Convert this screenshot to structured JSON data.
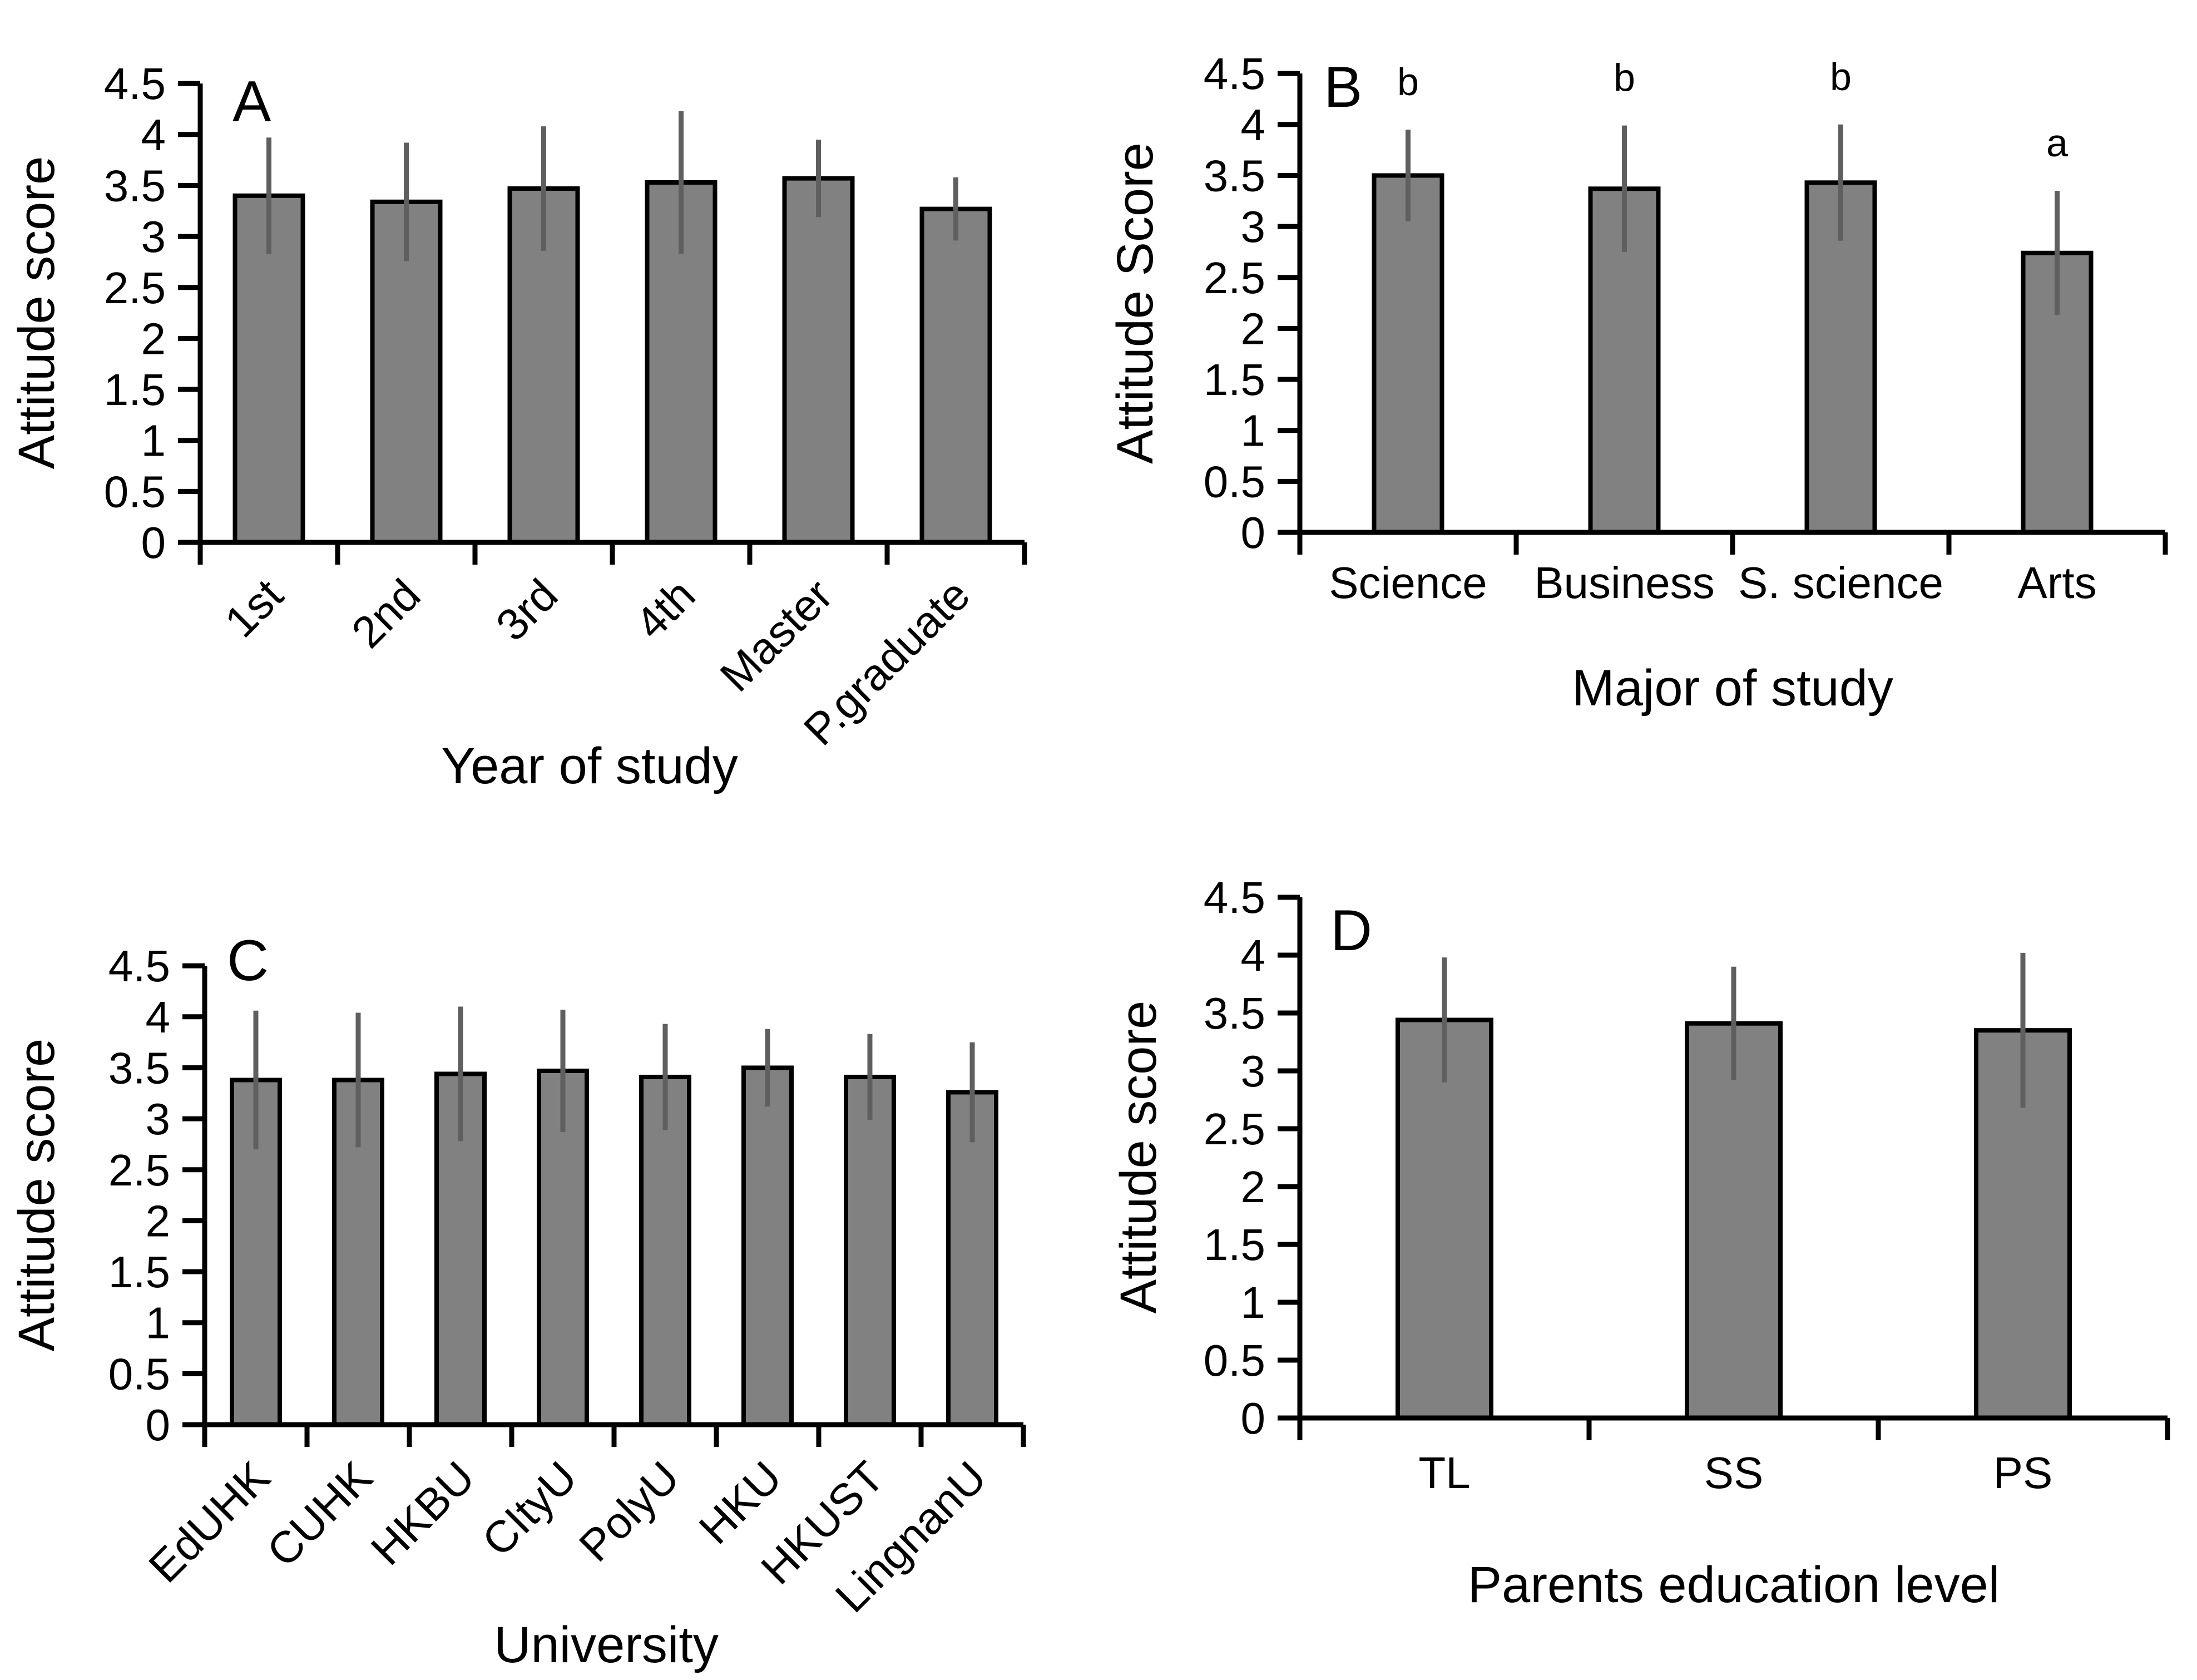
{
  "figure": {
    "background": "#ffffff",
    "text_color": "#000000",
    "bar_fill": "#818181",
    "bar_stroke": "#000000",
    "error_bar_color": "#5f5f5f",
    "axis_color": "#000000"
  },
  "chart_data": [
    {
      "panel_letter": "A",
      "type": "bar",
      "title": "",
      "xlabel": "Year of study",
      "ylabel": "Attitude score",
      "categories": [
        "1st",
        "2nd",
        "3rd",
        "4th",
        "Master",
        "P.graduate"
      ],
      "values": [
        3.4,
        3.34,
        3.47,
        3.53,
        3.57,
        3.27
      ],
      "error_sd": [
        0.57,
        0.58,
        0.61,
        0.7,
        0.38,
        0.31
      ],
      "sig_letters": [],
      "ylim": [
        0,
        4.5
      ],
      "ytick_step": 0.5,
      "ytick_labels": [
        "0",
        "0.5",
        "1",
        "1.5",
        "2",
        "2.5",
        "3",
        "3.5",
        "4",
        "4.5"
      ],
      "grid": false,
      "legend": "none",
      "category_label_rotation": -45
    },
    {
      "panel_letter": "B",
      "type": "bar",
      "title": "",
      "xlabel": "Major of study",
      "ylabel": "Attitude Score",
      "categories": [
        "Science",
        "Business",
        "S. science",
        "Arts"
      ],
      "values": [
        3.5,
        3.37,
        3.43,
        2.74
      ],
      "error_sd": [
        0.45,
        0.62,
        0.57,
        0.61
      ],
      "sig_letters": [
        "b",
        "b",
        "b",
        "a"
      ],
      "ylim": [
        0,
        4.5
      ],
      "ytick_step": 0.5,
      "ytick_labels": [
        "0",
        "0.5",
        "1",
        "1.5",
        "2",
        "2.5",
        "3",
        "3.5",
        "4",
        "4.5"
      ],
      "grid": false,
      "legend": "none",
      "category_label_rotation": 0
    },
    {
      "panel_letter": "C",
      "type": "bar",
      "title": "",
      "xlabel": "University",
      "ylabel": "Attitude score",
      "categories": [
        "EdUHK",
        "CUHK",
        "HKBU",
        "CItyU",
        "PolyU",
        "HKU",
        "HKUST",
        "LingnanU"
      ],
      "values": [
        3.38,
        3.38,
        3.44,
        3.47,
        3.41,
        3.5,
        3.41,
        3.26
      ],
      "error_sd": [
        0.68,
        0.66,
        0.66,
        0.6,
        0.52,
        0.38,
        0.42,
        0.49
      ],
      "sig_letters": [],
      "ylim": [
        0,
        4.5
      ],
      "ytick_step": 0.5,
      "ytick_labels": [
        "0",
        "0.5",
        "1",
        "1.5",
        "2",
        "2.5",
        "3",
        "3.5",
        "4",
        "4.5"
      ],
      "grid": false,
      "legend": "none",
      "category_label_rotation": -45
    },
    {
      "panel_letter": "D",
      "type": "bar",
      "title": "",
      "xlabel": "Parents education level",
      "ylabel": "Attitude score",
      "categories": [
        "TL",
        "SS",
        "PS"
      ],
      "values": [
        3.44,
        3.41,
        3.35
      ],
      "error_sd": [
        0.54,
        0.49,
        0.67
      ],
      "sig_letters": [],
      "ylim": [
        0,
        4.5
      ],
      "ytick_step": 0.5,
      "ytick_labels": [
        "0",
        "0.5",
        "1",
        "1.5",
        "2",
        "2.5",
        "3",
        "3.5",
        "4",
        "4.5"
      ],
      "grid": false,
      "legend": "none",
      "category_label_rotation": 0
    }
  ]
}
